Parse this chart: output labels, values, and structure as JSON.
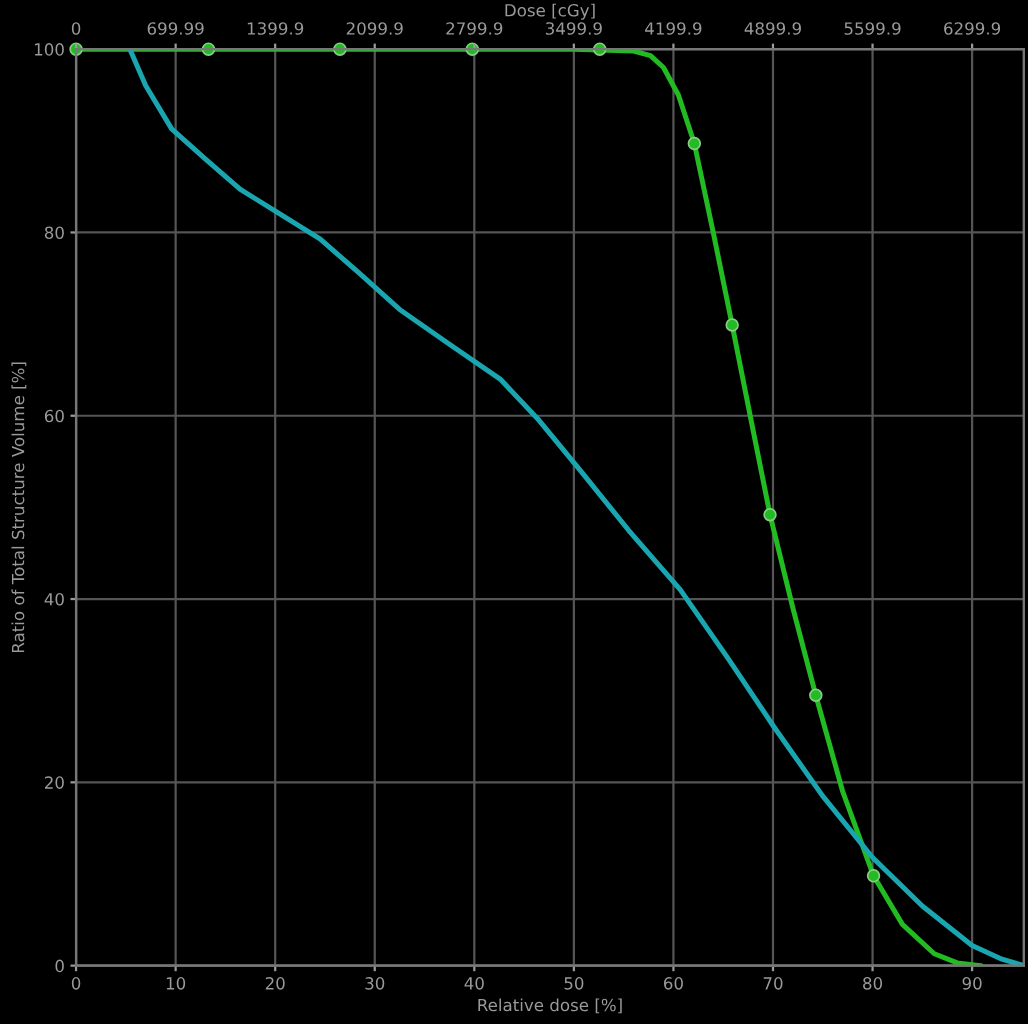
{
  "chart_data": {
    "type": "line",
    "xlabel": "Relative dose [%]",
    "ylabel": "Ratio of Total Structure Volume [%]",
    "x2label": "Dose [cGy]",
    "xlim": [
      0,
      95.2
    ],
    "xticks": [
      0,
      10,
      20,
      30,
      40,
      50,
      60,
      70,
      80,
      90
    ],
    "x2lim": [
      0,
      6664
    ],
    "x2ticks": [
      0,
      699.99,
      1399.9,
      2099.9,
      2799.9,
      3499.9,
      4199.9,
      4899.9,
      5599.9,
      6299.9
    ],
    "ylim": [
      0,
      100
    ],
    "yticks": [
      0,
      20,
      40,
      60,
      80,
      100
    ],
    "grid": true,
    "marker": "none",
    "line_style": "solid",
    "series": [
      {
        "color": "#22bb22",
        "x": [
          0,
          50,
          56,
          57.7,
          59,
          60.5,
          62.1,
          64,
          65.9,
          67.8,
          69.7,
          72,
          74.3,
          77,
          80.1,
          83,
          86.2,
          88.5,
          90.8
        ],
        "values": [
          100,
          100,
          99.8,
          99.3,
          98,
          95,
          89.7,
          80,
          69.9,
          59.5,
          49.2,
          39,
          29.5,
          19,
          9.8,
          4.5,
          1.3,
          0.3,
          0
        ]
      },
      {
        "type": "scatter",
        "marker": "circle",
        "color": "#22bb22",
        "x": [
          0,
          13.3,
          26.5,
          39.8,
          52.6,
          62.1,
          65.9,
          69.7,
          74.3,
          80.1
        ],
        "values": [
          100,
          100,
          100,
          100,
          100,
          89.7,
          69.9,
          49.2,
          29.5,
          9.8
        ]
      },
      {
        "color": "#1aa6b0",
        "x": [
          5.4,
          7,
          9.6,
          13,
          16.5,
          20.5,
          24.5,
          28.5,
          32.5,
          37.5,
          42.6,
          46.5,
          50.6,
          55.5,
          60.7,
          65.5,
          70,
          75,
          80,
          85,
          90,
          93,
          95.2
        ],
        "values": [
          100,
          96,
          91.3,
          88,
          84.7,
          82,
          79.3,
          75.5,
          71.6,
          67.8,
          64,
          59.5,
          54.1,
          47.5,
          41,
          33.5,
          26.2,
          18.5,
          11.8,
          6.5,
          2.2,
          0.7,
          0
        ]
      }
    ]
  }
}
